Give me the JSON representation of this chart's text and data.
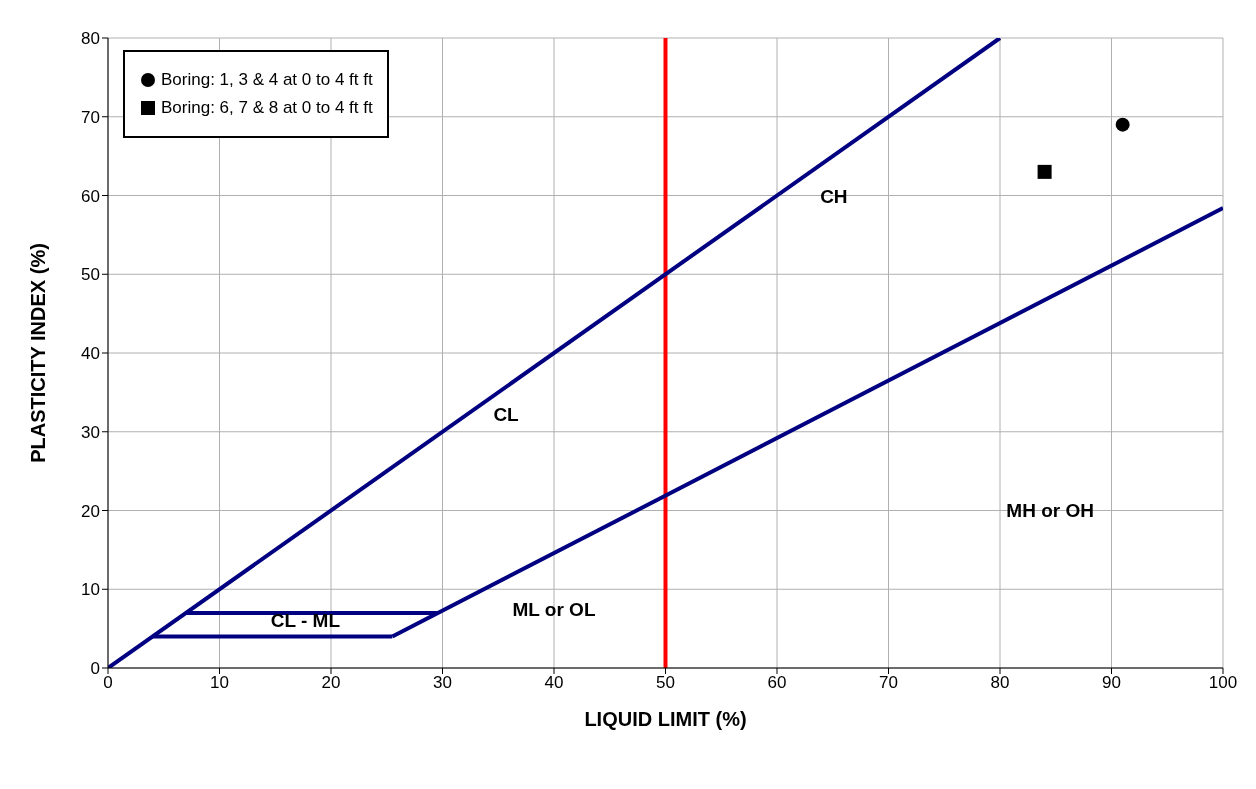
{
  "chart_data": {
    "type": "scatter",
    "xlabel": "LIQUID LIMIT (%)",
    "ylabel": "PLASTICITY INDEX (%)",
    "xlim": [
      0,
      100
    ],
    "xticks": [
      0,
      10,
      20,
      30,
      40,
      50,
      60,
      70,
      80,
      90,
      100
    ],
    "ylim": [
      0,
      80
    ],
    "yticks": [
      0,
      10,
      20,
      30,
      40,
      50,
      60,
      70,
      80
    ],
    "grid": true,
    "legend": "top left",
    "series": [
      {
        "type": "line",
        "color": "#000080",
        "x": [
          0,
          80
        ],
        "values": [
          0,
          80
        ],
        "marker": "none"
      },
      {
        "type": "line",
        "color": "#000080",
        "x": [
          25.5,
          100
        ],
        "values": [
          4,
          58.4
        ],
        "marker": "none"
      },
      {
        "type": "line",
        "color": "#000080",
        "x": [
          7,
          29.6
        ],
        "values": [
          7,
          7
        ],
        "marker": "none"
      },
      {
        "type": "line",
        "color": "#000080",
        "x": [
          4,
          25.5
        ],
        "values": [
          4,
          4
        ],
        "marker": "none"
      },
      {
        "name": "Boring: 1, 3 & 4 at 0 to 4 ft ft",
        "color": "#000000",
        "x": [
          91
        ],
        "values": [
          69
        ],
        "marker": "circle"
      },
      {
        "name": "Boring: 6, 7 & 8 at 0 to 4 ft ft",
        "color": "#000000",
        "x": [
          84
        ],
        "values": [
          63
        ],
        "marker": "square"
      }
    ],
    "ref_lines": [
      {
        "axis": "x",
        "value": 50,
        "color": "#ff0000"
      }
    ],
    "annotations": [
      "CL",
      "CH",
      "MH or OH",
      "ML or OL",
      "CL - ML"
    ]
  }
}
